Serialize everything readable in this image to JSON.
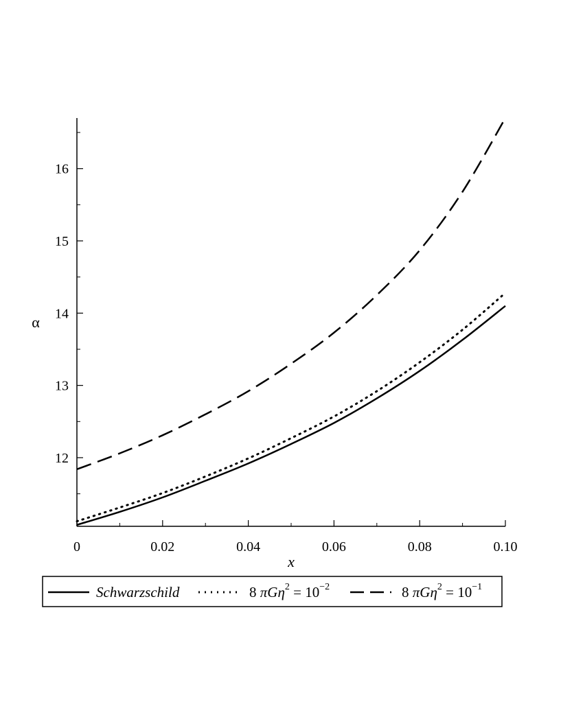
{
  "chart_data": {
    "type": "line",
    "title": "",
    "xlabel": "x",
    "ylabel": "α",
    "xlim": [
      0,
      0.1
    ],
    "ylim": [
      11.05,
      16.7
    ],
    "x_ticks": [
      0,
      0.02,
      0.04,
      0.06,
      0.08,
      0.1
    ],
    "x_tick_labels": [
      "0",
      "0.02",
      "0.04",
      "0.06",
      "0.08",
      "0.10"
    ],
    "y_ticks": [
      12,
      13,
      14,
      15,
      16
    ],
    "y_tick_labels": [
      "12",
      "13",
      "14",
      "15",
      "16"
    ],
    "grid": false,
    "legend_position": "bottom",
    "x": [
      0,
      0.01,
      0.02,
      0.03,
      0.04,
      0.05,
      0.06,
      0.07,
      0.08,
      0.09,
      0.1
    ],
    "series": [
      {
        "name": "Schwarzschild",
        "style": "solid",
        "values": [
          11.07,
          11.25,
          11.45,
          11.68,
          11.92,
          12.19,
          12.48,
          12.82,
          13.2,
          13.63,
          14.1
        ]
      },
      {
        "name": "8 πGη² = 10⁻²",
        "style": "dotted",
        "values": [
          11.12,
          11.31,
          11.51,
          11.74,
          11.99,
          12.27,
          12.57,
          12.92,
          13.32,
          13.77,
          14.28
        ]
      },
      {
        "name": "8 πGη² = 10⁻¹",
        "style": "dashed",
        "values": [
          11.84,
          12.06,
          12.31,
          12.6,
          12.92,
          13.3,
          13.73,
          14.25,
          14.87,
          15.68,
          16.7
        ]
      }
    ],
    "legend": {
      "schwarzschild": "Schwarzschild",
      "series2": {
        "prefix": "8 ",
        "pi": "π",
        "G": "G",
        "eta": "η",
        "sq": "2",
        "eq": " = 10",
        "exp": "−2"
      },
      "series3": {
        "prefix": "8 ",
        "pi": "π",
        "G": "G",
        "eta": "η",
        "sq": "2",
        "eq": " = 10",
        "exp": "−1"
      }
    }
  }
}
